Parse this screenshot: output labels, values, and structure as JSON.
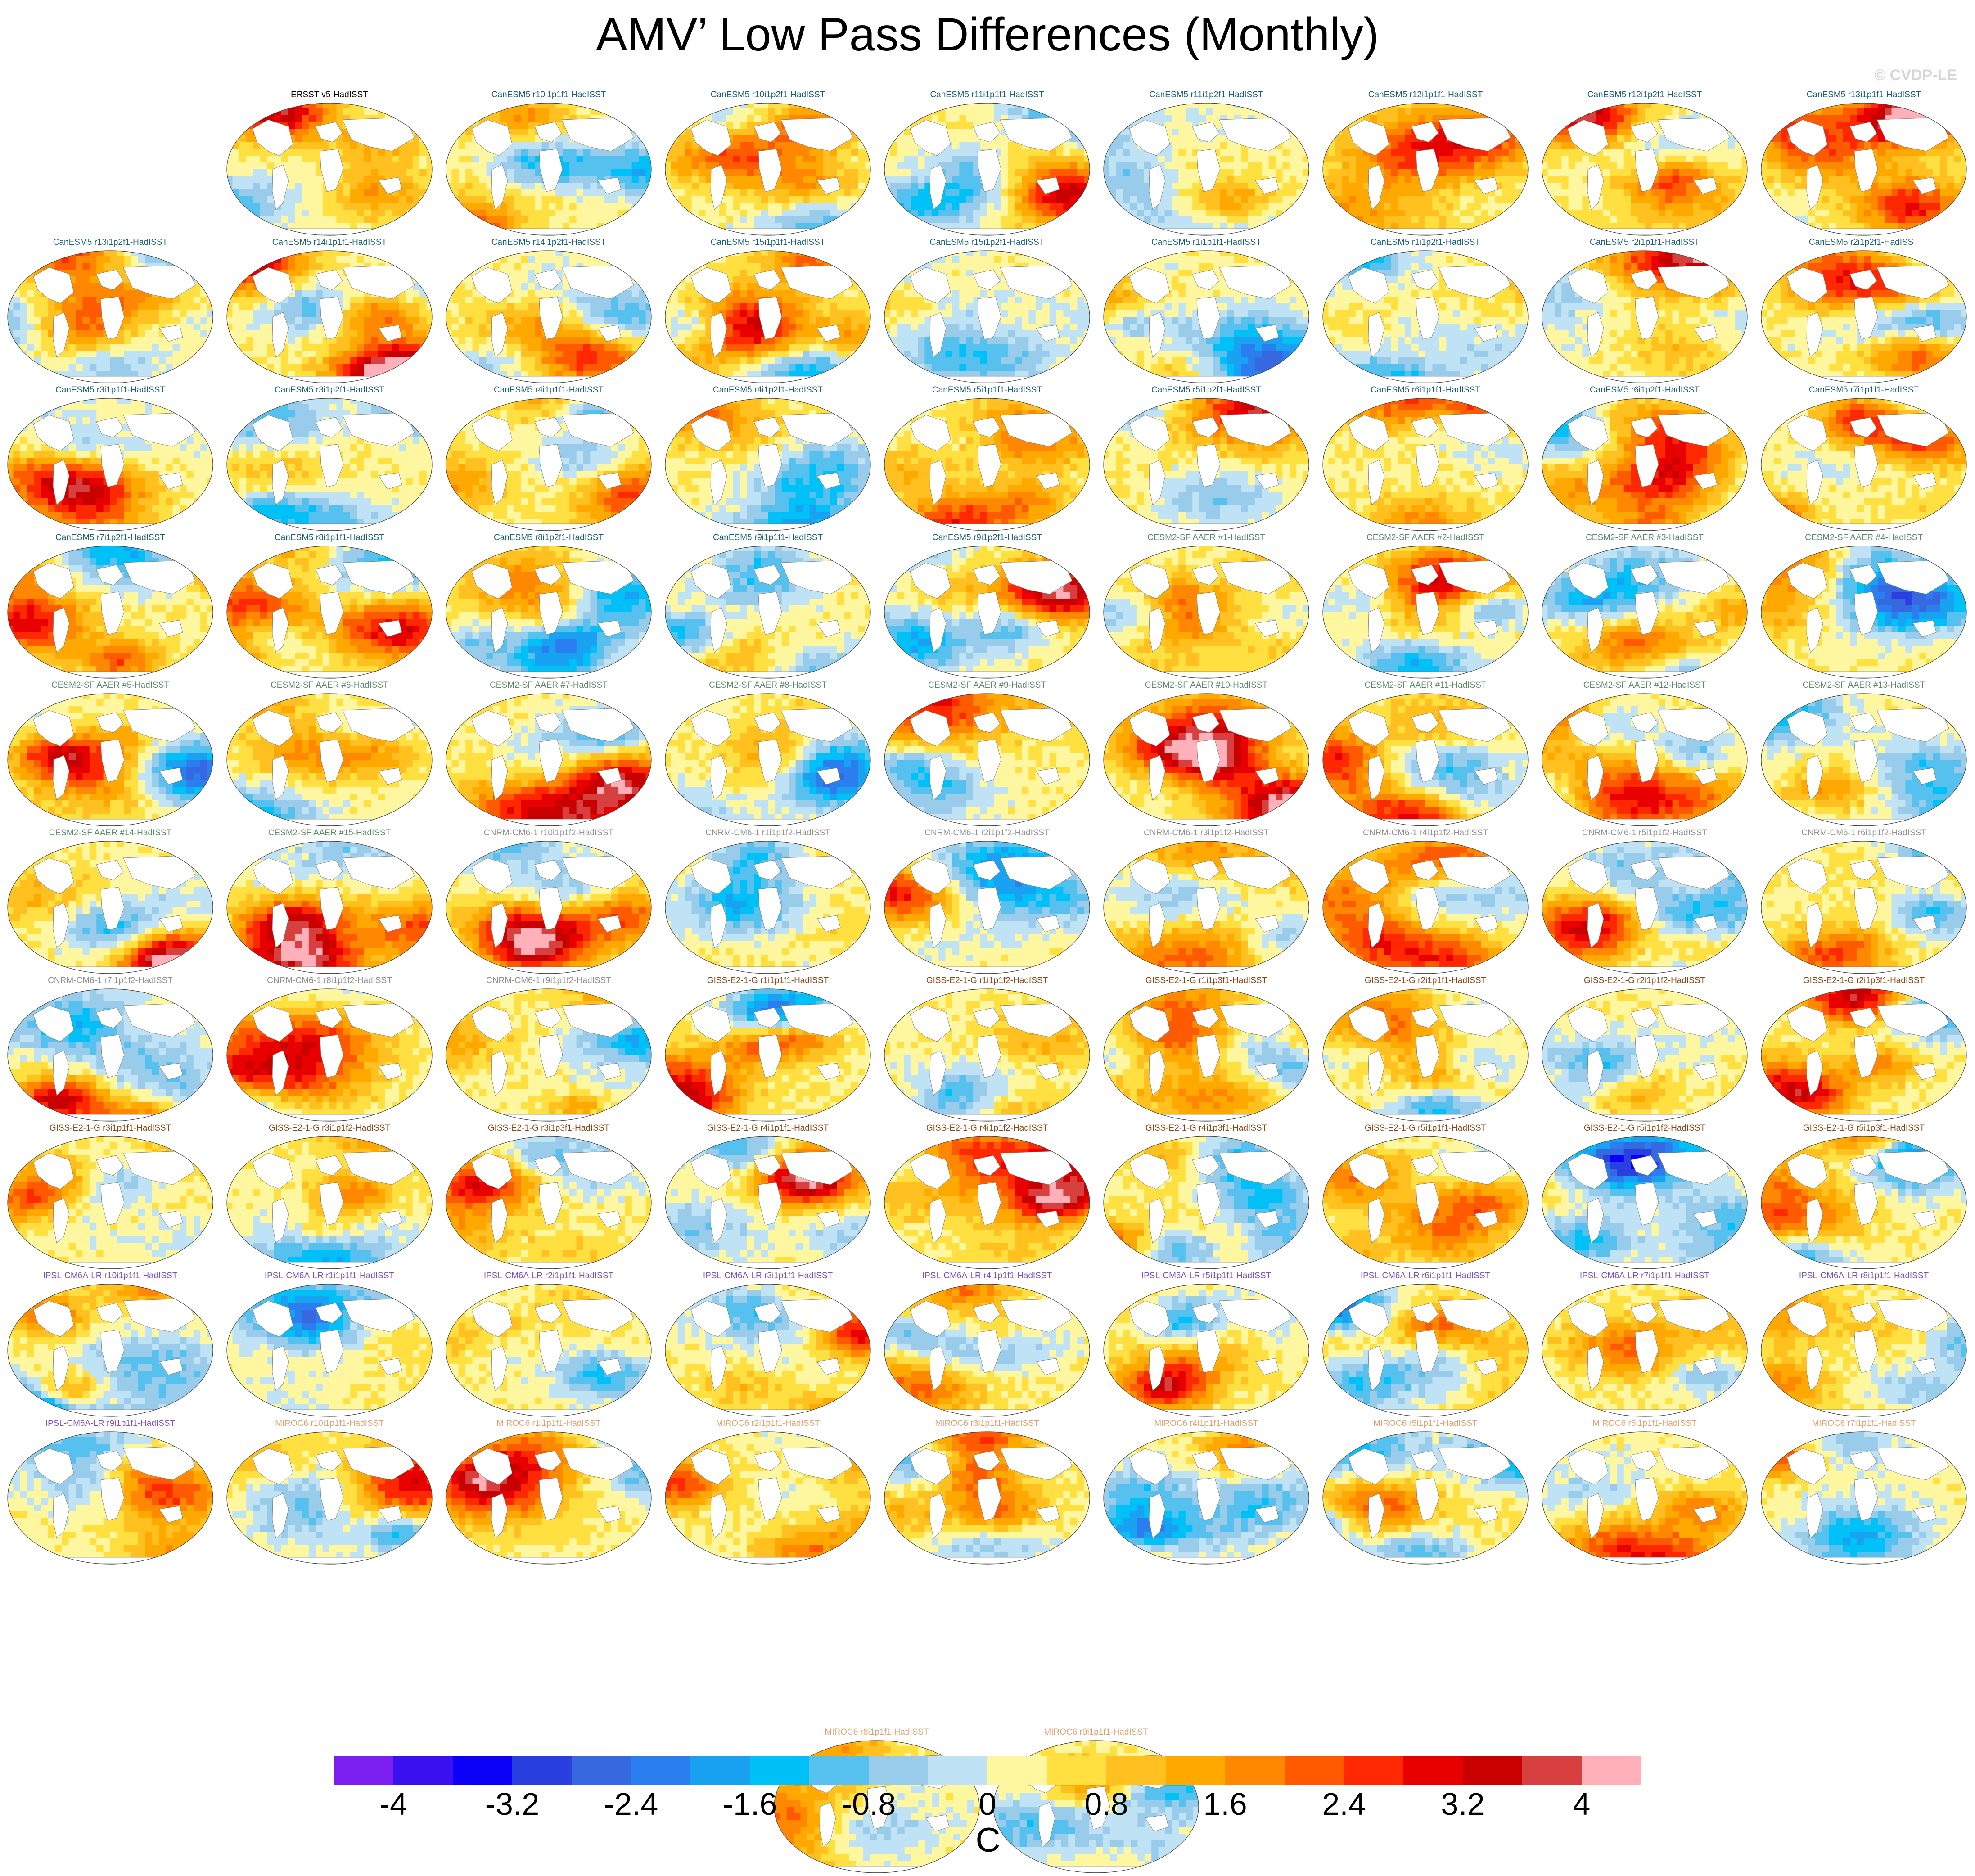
{
  "figure": {
    "title": "AMV’ Low Pass Differences (Monthly)",
    "watermark": "© CVDP-LE",
    "map_type": "global SST difference maps, low-pass filtered, oval projection"
  },
  "group_colors": {
    "ERSST": "#000000",
    "CanESM5": "#1a5f7a",
    "CESM2-SF AAER": "#5a8a6a",
    "CNRM-CM6-1": "#909090",
    "GISS-E2-1-G": "#8b4513",
    "IPSL-CM6A-LR": "#7b4fc8",
    "MIROC6": "#e0a070"
  },
  "panels": [
    {
      "label": "ERSST v5-HadISST",
      "group": "ERSST"
    },
    {
      "label": "CanESM5 r10i1p1f1-HadISST",
      "group": "CanESM5"
    },
    {
      "label": "CanESM5 r10i1p2f1-HadISST",
      "group": "CanESM5"
    },
    {
      "label": "CanESM5 r11i1p1f1-HadISST",
      "group": "CanESM5"
    },
    {
      "label": "CanESM5 r11i1p2f1-HadISST",
      "group": "CanESM5"
    },
    {
      "label": "CanESM5 r12i1p1f1-HadISST",
      "group": "CanESM5"
    },
    {
      "label": "CanESM5 r12i1p2f1-HadISST",
      "group": "CanESM5"
    },
    {
      "label": "CanESM5 r13i1p1f1-HadISST",
      "group": "CanESM5"
    },
    {
      "label": "CanESM5 r13i1p2f1-HadISST",
      "group": "CanESM5"
    },
    {
      "label": "CanESM5 r14i1p1f1-HadISST",
      "group": "CanESM5"
    },
    {
      "label": "CanESM5 r14i1p2f1-HadISST",
      "group": "CanESM5"
    },
    {
      "label": "CanESM5 r15i1p1f1-HadISST",
      "group": "CanESM5"
    },
    {
      "label": "CanESM5 r15i1p2f1-HadISST",
      "group": "CanESM5"
    },
    {
      "label": "CanESM5 r1i1p1f1-HadISST",
      "group": "CanESM5"
    },
    {
      "label": "CanESM5 r1i1p2f1-HadISST",
      "group": "CanESM5"
    },
    {
      "label": "CanESM5 r2i1p1f1-HadISST",
      "group": "CanESM5"
    },
    {
      "label": "CanESM5 r2i1p2f1-HadISST",
      "group": "CanESM5"
    },
    {
      "label": "CanESM5 r3i1p1f1-HadISST",
      "group": "CanESM5"
    },
    {
      "label": "CanESM5 r3i1p2f1-HadISST",
      "group": "CanESM5"
    },
    {
      "label": "CanESM5 r4i1p1f1-HadISST",
      "group": "CanESM5"
    },
    {
      "label": "CanESM5 r4i1p2f1-HadISST",
      "group": "CanESM5"
    },
    {
      "label": "CanESM5 r5i1p1f1-HadISST",
      "group": "CanESM5"
    },
    {
      "label": "CanESM5 r5i1p2f1-HadISST",
      "group": "CanESM5"
    },
    {
      "label": "CanESM5 r6i1p1f1-HadISST",
      "group": "CanESM5"
    },
    {
      "label": "CanESM5 r6i1p2f1-HadISST",
      "group": "CanESM5"
    },
    {
      "label": "CanESM5 r7i1p1f1-HadISST",
      "group": "CanESM5"
    },
    {
      "label": "CanESM5 r7i1p2f1-HadISST",
      "group": "CanESM5"
    },
    {
      "label": "CanESM5 r8i1p1f1-HadISST",
      "group": "CanESM5"
    },
    {
      "label": "CanESM5 r8i1p2f1-HadISST",
      "group": "CanESM5"
    },
    {
      "label": "CanESM5 r9i1p1f1-HadISST",
      "group": "CanESM5"
    },
    {
      "label": "CanESM5 r9i1p2f1-HadISST",
      "group": "CanESM5"
    },
    {
      "label": "CESM2-SF AAER #1-HadISST",
      "group": "CESM2-SF AAER"
    },
    {
      "label": "CESM2-SF AAER #2-HadISST",
      "group": "CESM2-SF AAER"
    },
    {
      "label": "CESM2-SF AAER #3-HadISST",
      "group": "CESM2-SF AAER"
    },
    {
      "label": "CESM2-SF AAER #4-HadISST",
      "group": "CESM2-SF AAER"
    },
    {
      "label": "CESM2-SF AAER #5-HadISST",
      "group": "CESM2-SF AAER"
    },
    {
      "label": "CESM2-SF AAER #6-HadISST",
      "group": "CESM2-SF AAER"
    },
    {
      "label": "CESM2-SF AAER #7-HadISST",
      "group": "CESM2-SF AAER"
    },
    {
      "label": "CESM2-SF AAER #8-HadISST",
      "group": "CESM2-SF AAER"
    },
    {
      "label": "CESM2-SF AAER #9-HadISST",
      "group": "CESM2-SF AAER"
    },
    {
      "label": "CESM2-SF AAER #10-HadISST",
      "group": "CESM2-SF AAER"
    },
    {
      "label": "CESM2-SF AAER #11-HadISST",
      "group": "CESM2-SF AAER"
    },
    {
      "label": "CESM2-SF AAER #12-HadISST",
      "group": "CESM2-SF AAER"
    },
    {
      "label": "CESM2-SF AAER #13-HadISST",
      "group": "CESM2-SF AAER"
    },
    {
      "label": "CESM2-SF AAER #14-HadISST",
      "group": "CESM2-SF AAER"
    },
    {
      "label": "CESM2-SF AAER #15-HadISST",
      "group": "CESM2-SF AAER"
    },
    {
      "label": "CNRM-CM6-1 r10i1p1f2-HadISST",
      "group": "CNRM-CM6-1"
    },
    {
      "label": "CNRM-CM6-1 r1i1p1f2-HadISST",
      "group": "CNRM-CM6-1"
    },
    {
      "label": "CNRM-CM6-1 r2i1p1f2-HadISST",
      "group": "CNRM-CM6-1"
    },
    {
      "label": "CNRM-CM6-1 r3i1p1f2-HadISST",
      "group": "CNRM-CM6-1"
    },
    {
      "label": "CNRM-CM6-1 r4i1p1f2-HadISST",
      "group": "CNRM-CM6-1"
    },
    {
      "label": "CNRM-CM6-1 r5i1p1f2-HadISST",
      "group": "CNRM-CM6-1"
    },
    {
      "label": "CNRM-CM6-1 r6i1p1f2-HadISST",
      "group": "CNRM-CM6-1"
    },
    {
      "label": "CNRM-CM6-1 r7i1p1f2-HadISST",
      "group": "CNRM-CM6-1"
    },
    {
      "label": "CNRM-CM6-1 r8i1p1f2-HadISST",
      "group": "CNRM-CM6-1"
    },
    {
      "label": "CNRM-CM6-1 r9i1p1f2-HadISST",
      "group": "CNRM-CM6-1"
    },
    {
      "label": "GISS-E2-1-G r1i1p1f1-HadISST",
      "group": "GISS-E2-1-G"
    },
    {
      "label": "GISS-E2-1-G r1i1p1f2-HadISST",
      "group": "GISS-E2-1-G"
    },
    {
      "label": "GISS-E2-1-G r1i1p3f1-HadISST",
      "group": "GISS-E2-1-G"
    },
    {
      "label": "GISS-E2-1-G r2i1p1f1-HadISST",
      "group": "GISS-E2-1-G"
    },
    {
      "label": "GISS-E2-1-G r2i1p1f2-HadISST",
      "group": "GISS-E2-1-G"
    },
    {
      "label": "GISS-E2-1-G r2i1p3f1-HadISST",
      "group": "GISS-E2-1-G"
    },
    {
      "label": "GISS-E2-1-G r3i1p1f1-HadISST",
      "group": "GISS-E2-1-G"
    },
    {
      "label": "GISS-E2-1-G r3i1p1f2-HadISST",
      "group": "GISS-E2-1-G"
    },
    {
      "label": "GISS-E2-1-G r3i1p3f1-HadISST",
      "group": "GISS-E2-1-G"
    },
    {
      "label": "GISS-E2-1-G r4i1p1f1-HadISST",
      "group": "GISS-E2-1-G"
    },
    {
      "label": "GISS-E2-1-G r4i1p1f2-HadISST",
      "group": "GISS-E2-1-G"
    },
    {
      "label": "GISS-E2-1-G r4i1p3f1-HadISST",
      "group": "GISS-E2-1-G"
    },
    {
      "label": "GISS-E2-1-G r5i1p1f1-HadISST",
      "group": "GISS-E2-1-G"
    },
    {
      "label": "GISS-E2-1-G r5i1p1f2-HadISST",
      "group": "GISS-E2-1-G"
    },
    {
      "label": "GISS-E2-1-G r5i1p3f1-HadISST",
      "group": "GISS-E2-1-G"
    },
    {
      "label": "IPSL-CM6A-LR r10i1p1f1-HadISST",
      "group": "IPSL-CM6A-LR"
    },
    {
      "label": "IPSL-CM6A-LR r1i1p1f1-HadISST",
      "group": "IPSL-CM6A-LR"
    },
    {
      "label": "IPSL-CM6A-LR r2i1p1f1-HadISST",
      "group": "IPSL-CM6A-LR"
    },
    {
      "label": "IPSL-CM6A-LR r3i1p1f1-HadISST",
      "group": "IPSL-CM6A-LR"
    },
    {
      "label": "IPSL-CM6A-LR r4i1p1f1-HadISST",
      "group": "IPSL-CM6A-LR"
    },
    {
      "label": "IPSL-CM6A-LR r5i1p1f1-HadISST",
      "group": "IPSL-CM6A-LR"
    },
    {
      "label": "IPSL-CM6A-LR r6i1p1f1-HadISST",
      "group": "IPSL-CM6A-LR"
    },
    {
      "label": "IPSL-CM6A-LR r7i1p1f1-HadISST",
      "group": "IPSL-CM6A-LR"
    },
    {
      "label": "IPSL-CM6A-LR r8i1p1f1-HadISST",
      "group": "IPSL-CM6A-LR"
    },
    {
      "label": "IPSL-CM6A-LR r9i1p1f1-HadISST",
      "group": "IPSL-CM6A-LR"
    },
    {
      "label": "MIROC6 r10i1p1f1-HadISST",
      "group": "MIROC6"
    },
    {
      "label": "MIROC6 r1i1p1f1-HadISST",
      "group": "MIROC6"
    },
    {
      "label": "MIROC6 r2i1p1f1-HadISST",
      "group": "MIROC6"
    },
    {
      "label": "MIROC6 r3i1p1f1-HadISST",
      "group": "MIROC6"
    },
    {
      "label": "MIROC6 r4i1p1f1-HadISST",
      "group": "MIROC6"
    },
    {
      "label": "MIROC6 r5i1p1f1-HadISST",
      "group": "MIROC6"
    },
    {
      "label": "MIROC6 r6i1p1f1-HadISST",
      "group": "MIROC6"
    },
    {
      "label": "MIROC6 r7i1p1f1-HadISST",
      "group": "MIROC6"
    },
    {
      "label": "MIROC6 r8i1p1f1-HadISST",
      "group": "MIROC6"
    },
    {
      "label": "MIROC6 r9i1p1f1-HadISST",
      "group": "MIROC6"
    }
  ],
  "colorbar": {
    "units": "C",
    "min": -4.4,
    "max": 4.4,
    "step": 0.4,
    "tick_values": [
      -4,
      -3.2,
      -2.4,
      -1.6,
      -0.8,
      0,
      0.8,
      1.6,
      2.4,
      3.2,
      4
    ],
    "tick_labels": [
      "-4",
      "-3.2",
      "-2.4",
      "-1.6",
      "-0.8",
      "0",
      "0.8",
      "1.6",
      "2.4",
      "3.2",
      "4"
    ],
    "colors": [
      "#7a1ff0",
      "#3a10f0",
      "#0a00f8",
      "#2a3fe0",
      "#3668e0",
      "#2a7ef0",
      "#1aa2f2",
      "#00c0f8",
      "#56c0ee",
      "#98ccea",
      "#bfe3f5",
      "#fff7a0",
      "#ffe040",
      "#ffc020",
      "#ffa800",
      "#ff8800",
      "#ff5a00",
      "#ff2800",
      "#e80000",
      "#c80000",
      "#d84040",
      "#ffb0b8"
    ]
  }
}
